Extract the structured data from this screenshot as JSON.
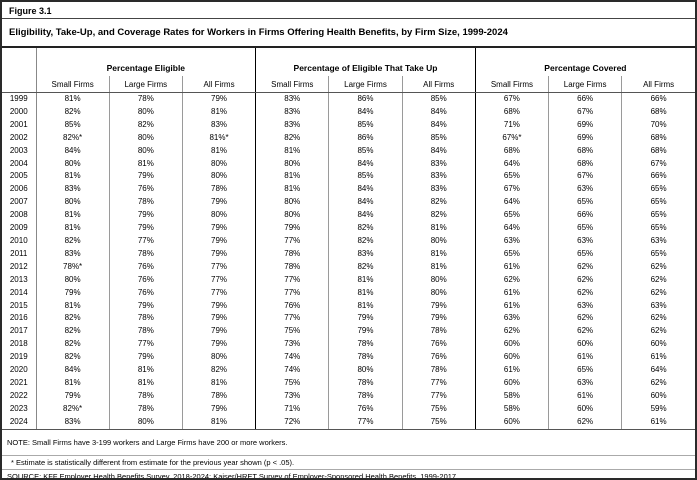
{
  "figure": {
    "label": "Figure 3.1",
    "title": "Eligibility, Take-Up, and Coverage Rates for Workers in Firms Offering Health Benefits, by Firm Size, 1999-2024"
  },
  "table": {
    "groups": [
      {
        "label": "Percentage Eligible",
        "cols": [
          "Small Firms",
          "Large Firms",
          "All Firms"
        ]
      },
      {
        "label": "Percentage of Eligible That Take Up",
        "cols": [
          "Small Firms",
          "Large Firms",
          "All Firms"
        ]
      },
      {
        "label": "Percentage Covered",
        "cols": [
          "Small Firms",
          "Large Firms",
          "All Firms"
        ]
      }
    ],
    "rows": [
      {
        "year": "1999",
        "values": [
          "81%",
          "78%",
          "79%",
          "83%",
          "86%",
          "85%",
          "67%",
          "66%",
          "66%"
        ]
      },
      {
        "year": "2000",
        "values": [
          "82%",
          "80%",
          "81%",
          "83%",
          "84%",
          "84%",
          "68%",
          "67%",
          "68%"
        ]
      },
      {
        "year": "2001",
        "values": [
          "85%",
          "82%",
          "83%",
          "83%",
          "85%",
          "84%",
          "71%",
          "69%",
          "70%"
        ]
      },
      {
        "year": "2002",
        "values": [
          "82%*",
          "80%",
          "81%*",
          "82%",
          "86%",
          "85%",
          "67%*",
          "69%",
          "68%"
        ]
      },
      {
        "year": "2003",
        "values": [
          "84%",
          "80%",
          "81%",
          "81%",
          "85%",
          "84%",
          "68%",
          "68%",
          "68%"
        ]
      },
      {
        "year": "2004",
        "values": [
          "80%",
          "81%",
          "80%",
          "80%",
          "84%",
          "83%",
          "64%",
          "68%",
          "67%"
        ]
      },
      {
        "year": "2005",
        "values": [
          "81%",
          "79%",
          "80%",
          "81%",
          "85%",
          "83%",
          "65%",
          "67%",
          "66%"
        ]
      },
      {
        "year": "2006",
        "values": [
          "83%",
          "76%",
          "78%",
          "81%",
          "84%",
          "83%",
          "67%",
          "63%",
          "65%"
        ]
      },
      {
        "year": "2007",
        "values": [
          "80%",
          "78%",
          "79%",
          "80%",
          "84%",
          "82%",
          "64%",
          "65%",
          "65%"
        ]
      },
      {
        "year": "2008",
        "values": [
          "81%",
          "79%",
          "80%",
          "80%",
          "84%",
          "82%",
          "65%",
          "66%",
          "65%"
        ]
      },
      {
        "year": "2009",
        "values": [
          "81%",
          "79%",
          "79%",
          "79%",
          "82%",
          "81%",
          "64%",
          "65%",
          "65%"
        ]
      },
      {
        "year": "2010",
        "values": [
          "82%",
          "77%",
          "79%",
          "77%",
          "82%",
          "80%",
          "63%",
          "63%",
          "63%"
        ]
      },
      {
        "year": "2011",
        "values": [
          "83%",
          "78%",
          "79%",
          "78%",
          "83%",
          "81%",
          "65%",
          "65%",
          "65%"
        ]
      },
      {
        "year": "2012",
        "values": [
          "78%*",
          "76%",
          "77%",
          "78%",
          "82%",
          "81%",
          "61%",
          "62%",
          "62%"
        ]
      },
      {
        "year": "2013",
        "values": [
          "80%",
          "76%",
          "77%",
          "77%",
          "81%",
          "80%",
          "62%",
          "62%",
          "62%"
        ]
      },
      {
        "year": "2014",
        "values": [
          "79%",
          "76%",
          "77%",
          "77%",
          "81%",
          "80%",
          "61%",
          "62%",
          "62%"
        ]
      },
      {
        "year": "2015",
        "values": [
          "81%",
          "79%",
          "79%",
          "76%",
          "81%",
          "79%",
          "61%",
          "63%",
          "63%"
        ]
      },
      {
        "year": "2016",
        "values": [
          "82%",
          "78%",
          "79%",
          "77%",
          "79%",
          "79%",
          "63%",
          "62%",
          "62%"
        ]
      },
      {
        "year": "2017",
        "values": [
          "82%",
          "78%",
          "79%",
          "75%",
          "79%",
          "78%",
          "62%",
          "62%",
          "62%"
        ]
      },
      {
        "year": "2018",
        "values": [
          "82%",
          "77%",
          "79%",
          "73%",
          "78%",
          "76%",
          "60%",
          "60%",
          "60%"
        ]
      },
      {
        "year": "2019",
        "values": [
          "82%",
          "79%",
          "80%",
          "74%",
          "78%",
          "76%",
          "60%",
          "61%",
          "61%"
        ]
      },
      {
        "year": "2020",
        "values": [
          "84%",
          "81%",
          "82%",
          "74%",
          "80%",
          "78%",
          "61%",
          "65%",
          "64%"
        ]
      },
      {
        "year": "2021",
        "values": [
          "81%",
          "81%",
          "81%",
          "75%",
          "78%",
          "77%",
          "60%",
          "63%",
          "62%"
        ]
      },
      {
        "year": "2022",
        "values": [
          "79%",
          "78%",
          "78%",
          "73%",
          "78%",
          "77%",
          "58%",
          "61%",
          "60%"
        ]
      },
      {
        "year": "2023",
        "values": [
          "82%*",
          "78%",
          "79%",
          "71%",
          "76%",
          "75%",
          "58%",
          "60%",
          "59%"
        ]
      },
      {
        "year": "2024",
        "values": [
          "83%",
          "80%",
          "81%",
          "72%",
          "77%",
          "75%",
          "60%",
          "62%",
          "61%"
        ]
      }
    ]
  },
  "notes": {
    "note": "NOTE: Small Firms have 3-199 workers and Large Firms have 200 or more workers.",
    "estimate": "* Estimate is statistically different from estimate for the previous year shown (p < .05).",
    "source": "SOURCE: KFF Employer Health Benefits Survey, 2018-2024; Kaiser/HRET Survey of Employer-Sponsored Health Benefits, 1999-2017"
  },
  "chart_data": {
    "type": "table",
    "title": "Eligibility, Take-Up, and Coverage Rates for Workers in Firms Offering Health Benefits, by Firm Size, 1999-2024",
    "categories": [
      1999,
      2000,
      2001,
      2002,
      2003,
      2004,
      2005,
      2006,
      2007,
      2008,
      2009,
      2010,
      2011,
      2012,
      2013,
      2014,
      2015,
      2016,
      2017,
      2018,
      2019,
      2020,
      2021,
      2022,
      2023,
      2024
    ],
    "units": "percent",
    "series": [
      {
        "name": "Percentage Eligible - Small Firms",
        "values": [
          81,
          82,
          85,
          82,
          84,
          80,
          81,
          83,
          80,
          81,
          81,
          82,
          83,
          78,
          80,
          79,
          81,
          82,
          82,
          82,
          82,
          84,
          81,
          79,
          82,
          83
        ]
      },
      {
        "name": "Percentage Eligible - Large Firms",
        "values": [
          78,
          80,
          82,
          80,
          80,
          81,
          79,
          76,
          78,
          79,
          79,
          77,
          78,
          76,
          76,
          76,
          79,
          78,
          78,
          77,
          79,
          81,
          81,
          78,
          78,
          80
        ]
      },
      {
        "name": "Percentage Eligible - All Firms",
        "values": [
          79,
          81,
          83,
          81,
          81,
          80,
          80,
          78,
          79,
          80,
          79,
          79,
          79,
          77,
          77,
          77,
          79,
          79,
          79,
          79,
          80,
          82,
          81,
          78,
          79,
          81
        ]
      },
      {
        "name": "Percentage of Eligible That Take Up - Small Firms",
        "values": [
          83,
          83,
          83,
          82,
          81,
          80,
          81,
          81,
          80,
          80,
          79,
          77,
          78,
          78,
          77,
          77,
          76,
          77,
          75,
          73,
          74,
          74,
          75,
          73,
          71,
          72
        ]
      },
      {
        "name": "Percentage of Eligible That Take Up - Large Firms",
        "values": [
          86,
          84,
          85,
          86,
          85,
          84,
          85,
          84,
          84,
          84,
          82,
          82,
          83,
          82,
          81,
          81,
          81,
          79,
          79,
          78,
          78,
          80,
          78,
          78,
          76,
          77
        ]
      },
      {
        "name": "Percentage of Eligible That Take Up - All Firms",
        "values": [
          85,
          84,
          84,
          85,
          84,
          83,
          83,
          83,
          82,
          82,
          81,
          80,
          81,
          81,
          80,
          80,
          79,
          79,
          78,
          76,
          76,
          78,
          77,
          77,
          75,
          75
        ]
      },
      {
        "name": "Percentage Covered - Small Firms",
        "values": [
          67,
          68,
          71,
          67,
          68,
          64,
          65,
          67,
          64,
          65,
          64,
          63,
          65,
          61,
          62,
          61,
          61,
          63,
          62,
          60,
          60,
          61,
          60,
          58,
          58,
          60
        ]
      },
      {
        "name": "Percentage Covered - Large Firms",
        "values": [
          66,
          67,
          69,
          69,
          68,
          68,
          67,
          63,
          65,
          66,
          65,
          63,
          65,
          62,
          62,
          62,
          63,
          62,
          62,
          60,
          61,
          65,
          63,
          61,
          60,
          62
        ]
      },
      {
        "name": "Percentage Covered - All Firms",
        "values": [
          66,
          68,
          70,
          68,
          68,
          67,
          66,
          65,
          65,
          65,
          65,
          63,
          65,
          62,
          62,
          62,
          63,
          62,
          62,
          60,
          61,
          64,
          62,
          60,
          59,
          61
        ]
      }
    ],
    "starred_cells": [
      {
        "year": 2002,
        "series": "Percentage Eligible - Small Firms"
      },
      {
        "year": 2002,
        "series": "Percentage Eligible - All Firms"
      },
      {
        "year": 2002,
        "series": "Percentage Covered - Small Firms"
      },
      {
        "year": 2012,
        "series": "Percentage Eligible - Small Firms"
      },
      {
        "year": 2023,
        "series": "Percentage Eligible - Small Firms"
      }
    ]
  }
}
